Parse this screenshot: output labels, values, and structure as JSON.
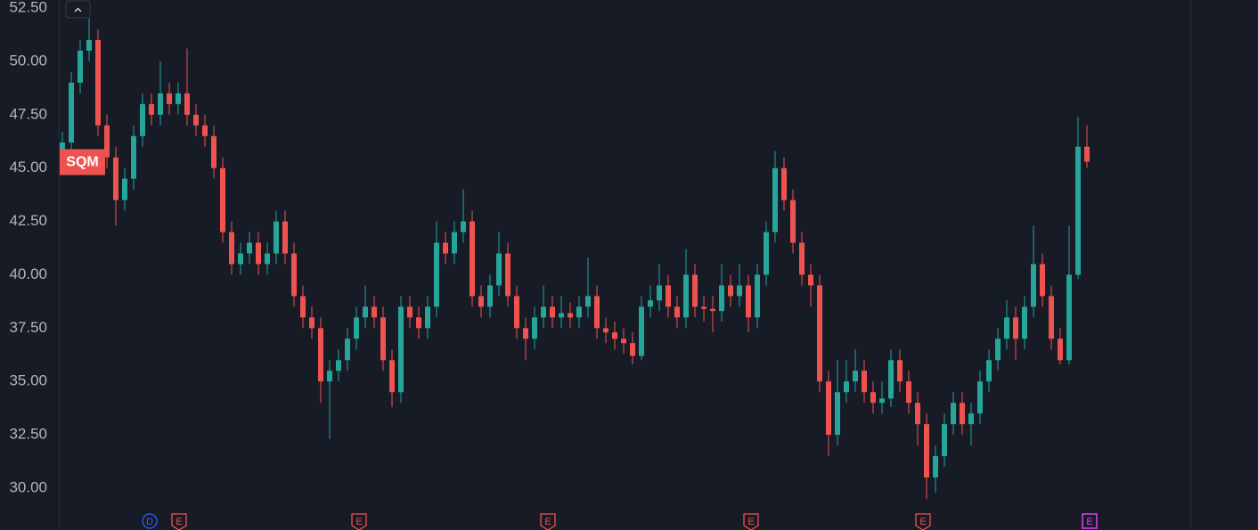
{
  "chart_data": {
    "type": "candlestick",
    "symbol": "SQM",
    "ylim": [
      28.04,
      52.876
    ],
    "yticks": [
      {
        "value": 30,
        "label": "30.00"
      },
      {
        "value": 32.5,
        "label": "32.50"
      },
      {
        "value": 35,
        "label": "35.00"
      },
      {
        "value": 37.5,
        "label": "37.50"
      },
      {
        "value": 40,
        "label": "40.00"
      },
      {
        "value": 42.5,
        "label": "42.50"
      },
      {
        "value": 45,
        "label": "45.00"
      },
      {
        "value": 47.5,
        "label": "47.50"
      },
      {
        "value": 50,
        "label": "50.00"
      },
      {
        "value": 52.5,
        "label": "52.50"
      }
    ],
    "up_color": "#26a69a",
    "down_color": "#ef5350",
    "open": [
      45.5,
      46.2,
      49,
      50.5,
      51,
      47,
      45.5,
      43.5,
      44.5,
      46.5,
      48,
      47.5,
      48.5,
      48,
      48.5,
      47.5,
      47,
      46.5,
      45,
      42,
      40.5,
      41,
      41.5,
      40.5,
      41,
      42.5,
      41,
      39,
      38,
      37.5,
      35,
      35.5,
      36,
      37,
      38,
      38.5,
      38,
      36,
      34.5,
      38.5,
      38,
      37.5,
      38.5,
      41.5,
      41,
      42,
      42.5,
      39,
      38.5,
      39.5,
      41,
      39,
      37.5,
      37,
      38,
      38.5,
      38,
      38.2,
      38,
      38.5,
      39,
      37.5,
      37.3,
      37,
      36.8,
      36.2,
      38.5,
      38.8,
      39.5,
      38.5,
      38,
      40,
      38.5,
      38.4,
      38.3,
      39.5,
      39,
      39.5,
      38,
      40,
      42,
      45,
      43.5,
      41.5,
      40,
      39.5,
      35,
      32.5,
      34.5,
      35,
      35.5,
      34.5,
      34,
      34.2,
      36,
      35,
      34,
      33,
      30.5,
      31.5,
      33,
      34,
      33,
      33.5,
      35,
      36,
      37,
      38,
      37,
      38.5,
      40.5,
      39,
      37,
      36,
      40,
      46
    ],
    "high": [
      46.7,
      49.5,
      51,
      52,
      51.5,
      47.5,
      46,
      45,
      47,
      48.5,
      48.5,
      50,
      49,
      49,
      50.6,
      48,
      47.5,
      47,
      45.5,
      42.5,
      41.5,
      42,
      42,
      41.5,
      43,
      43,
      41.5,
      39.5,
      38.5,
      38,
      36,
      36.5,
      37.5,
      38.5,
      39.5,
      39,
      38.5,
      36.5,
      39,
      39,
      38.5,
      39,
      42.5,
      42,
      42.5,
      44,
      43,
      39.5,
      40,
      42,
      41.5,
      39.5,
      38,
      38.5,
      39.5,
      39,
      39,
      38.7,
      39,
      40.8,
      39.5,
      38,
      37.8,
      37.5,
      37.3,
      39,
      39.5,
      40.5,
      40,
      39,
      41.2,
      40.5,
      39,
      39,
      40.5,
      40,
      40.5,
      40,
      40.5,
      42.5,
      45.8,
      45.5,
      44,
      42,
      40.5,
      40,
      35.5,
      36,
      36,
      36.5,
      36,
      35,
      35,
      36.5,
      36.5,
      35.5,
      34.5,
      33.5,
      32,
      33.5,
      34.5,
      34.5,
      34,
      35.5,
      36.5,
      37.5,
      38.8,
      38.5,
      39,
      42.3,
      41,
      39.5,
      37.5,
      42.3,
      47.4,
      47
    ],
    "low": [
      45,
      45.7,
      48.5,
      50,
      46.5,
      45,
      42.3,
      43,
      44,
      46,
      47,
      47,
      47.5,
      47.5,
      47,
      46.5,
      46,
      44.5,
      41.5,
      40,
      40,
      40.5,
      40,
      40,
      40.5,
      40.5,
      38.5,
      37.5,
      37,
      34,
      32.3,
      35,
      35.5,
      36.5,
      37.5,
      37.5,
      35.5,
      33.8,
      34,
      37.5,
      37,
      37,
      38,
      40.5,
      40.5,
      41.5,
      38.5,
      38,
      38,
      39,
      38.5,
      37,
      36,
      36.5,
      37.5,
      37.5,
      37.5,
      37.5,
      37.5,
      38,
      37,
      36.8,
      36.5,
      36.3,
      35.8,
      36,
      38,
      38.3,
      38,
      37.5,
      37.5,
      38,
      37.8,
      37.3,
      37.8,
      38.5,
      38.5,
      37.3,
      37.5,
      39.5,
      41.5,
      43,
      41,
      39.5,
      38.5,
      34.5,
      31.5,
      32,
      34,
      34.5,
      34,
      33.5,
      33.5,
      33.8,
      34.5,
      33.5,
      32,
      29.5,
      29.8,
      31,
      32.5,
      32.5,
      32,
      33,
      34.5,
      35.5,
      36.5,
      36,
      36.5,
      38,
      38.5,
      36.5,
      35.8,
      35.8,
      39.8,
      45
    ],
    "close": [
      46.2,
      49,
      50.5,
      51,
      47,
      45.5,
      43.5,
      44.5,
      46.5,
      48,
      47.5,
      48.5,
      48,
      48.5,
      47.5,
      47,
      46.5,
      45,
      42,
      40.5,
      41,
      41.5,
      40.5,
      41,
      42.5,
      41,
      39,
      38,
      37.5,
      35,
      35.5,
      36,
      37,
      38,
      38.5,
      38,
      36,
      34.5,
      38.5,
      38,
      37.5,
      38.5,
      41.5,
      41,
      42,
      42.5,
      39,
      38.5,
      39.5,
      41,
      39,
      37.5,
      37,
      38,
      38.5,
      38,
      38.2,
      38,
      38.5,
      39,
      37.5,
      37.3,
      37,
      36.8,
      36.2,
      38.5,
      38.8,
      39.5,
      38.5,
      38,
      40,
      38.5,
      38.4,
      38.3,
      39.5,
      39,
      39.5,
      38,
      40,
      42,
      45,
      43.5,
      41.5,
      40,
      39.5,
      35,
      32.5,
      34.5,
      35,
      35.5,
      34.5,
      34,
      34.2,
      36,
      35,
      34,
      33,
      30.5,
      31.5,
      33,
      34,
      33,
      33.5,
      35,
      36,
      37,
      38,
      37,
      38.5,
      40.5,
      39,
      37,
      36,
      40,
      46,
      45.3
    ],
    "events": [
      {
        "label": "D",
        "color": "#2962ff"
      },
      {
        "label": "E",
        "color": "#ef5350"
      },
      {
        "label": "E",
        "color": "#ef5350"
      },
      {
        "label": "E",
        "color": "#ef5350"
      },
      {
        "label": "E",
        "color": "#ef5350"
      },
      {
        "label": "E",
        "color": "#ef5350"
      },
      {
        "label": "E",
        "color": "#e040fb"
      }
    ]
  }
}
